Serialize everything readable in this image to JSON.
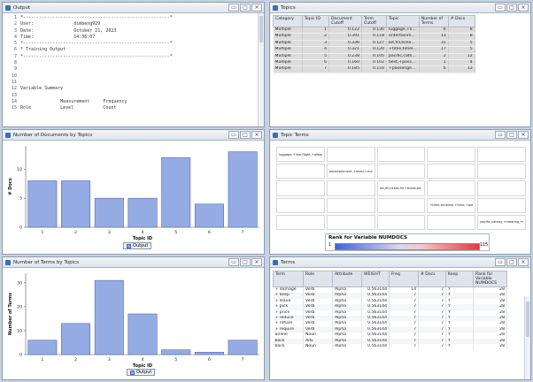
{
  "output": {
    "title": "Output",
    "lines": [
      {
        "n": "1",
        "text": "*-------------------------------------------------------*"
      },
      {
        "n": "2",
        "text": "User:               dimbeng929"
      },
      {
        "n": "3",
        "text": "Date:               October 21, 2023"
      },
      {
        "n": "4",
        "text": "Time:               14:36:07"
      },
      {
        "n": "5",
        "text": "*-------------------------------------------------------*"
      },
      {
        "n": "6",
        "text": "* Training Output"
      },
      {
        "n": "7",
        "text": "*-------------------------------------------------------*"
      },
      {
        "n": "8",
        "text": ""
      },
      {
        "n": "9",
        "text": ""
      },
      {
        "n": "10",
        "text": ""
      },
      {
        "n": "11",
        "text": ""
      },
      {
        "n": "12",
        "text": "Variable Summary"
      },
      {
        "n": "13",
        "text": ""
      },
      {
        "n": "14",
        "text": "               Measurement     Frequency"
      },
      {
        "n": "15",
        "text": "Role           Level           Count"
      }
    ]
  },
  "topics": {
    "title": "Topics",
    "columns": [
      "Category",
      "Topic ID",
      "Document Cutoff",
      "Term Cutoff",
      "Topic",
      "Number of Terms",
      "# Docs"
    ],
    "rows": [
      [
        "Multiple",
        "1",
        "0.122",
        "0.130",
        "luggage,+li...",
        "6",
        "8"
      ],
      [
        "Multiple",
        "2",
        "0.391",
        "0.118",
        "entertainm...",
        "13",
        "8"
      ],
      [
        "Multiple",
        "3",
        "0.336",
        "0.127",
        "bit,fill,ticke...",
        "31",
        "5"
      ],
      [
        "Multiple",
        "4",
        "0.321",
        "0.120",
        "+time,timel...",
        "17",
        "5"
      ],
      [
        "Multiple",
        "5",
        "0.238",
        "0.105",
        "pacific,cath...",
        "2",
        "12"
      ],
      [
        "Multiple",
        "6",
        "0.160",
        "0.102",
        "best,+poss...",
        "1",
        "4"
      ],
      [
        "Multiple",
        "7",
        "0.185",
        "0.110",
        "+passenge...",
        "6",
        "13"
      ]
    ]
  },
  "chart1": {
    "title": "Number of Documents by Topics",
    "legend": "Output",
    "chart_data": {
      "type": "bar",
      "categories": [
        "1",
        "2",
        "3",
        "4",
        "5",
        "6",
        "7"
      ],
      "values": [
        8,
        8,
        5,
        5,
        12,
        4,
        13
      ],
      "xlabel": "Topic ID",
      "ylabel": "# Docs",
      "ylim": [
        0,
        14
      ],
      "yticks": [
        0,
        5,
        10
      ],
      "grid": false
    }
  },
  "chart2": {
    "title": "Number of Terms by Topics",
    "legend": "Output",
    "chart_data": {
      "type": "bar",
      "categories": [
        "1",
        "2",
        "3",
        "4",
        "5",
        "6",
        "7"
      ],
      "values": [
        6,
        13,
        31,
        17,
        2,
        1,
        6
      ],
      "xlabel": "Topic ID",
      "ylabel": "Number of Terms",
      "ylim": [
        0,
        34
      ],
      "yticks": [
        0,
        10,
        20,
        30
      ],
      "grid": false
    }
  },
  "topicterms": {
    "title": "Topic Terms",
    "labels": [
      {
        "row": 0,
        "col": 0,
        "text": "luggage,+line,flight,+allow,flight"
      },
      {
        "row": 1,
        "col": 1,
        "text": "entertainment,+meal,+meal"
      },
      {
        "row": 2,
        "col": 2,
        "text": "bit,fill,ticket,fill,+ticket,bit,"
      },
      {
        "row": 3,
        "col": 3,
        "text": "+time,timeline,+time,+plan,value,+booking,hold,multiple"
      },
      {
        "row": 4,
        "col": 4,
        "text": "pacific,cathay,+meeting,+ro"
      }
    ],
    "rank_title": "Rank for Variable NUMDOCS",
    "rank_min": "1",
    "rank_max": "115"
  },
  "terms": {
    "title": "Terms",
    "columns": [
      "Term",
      "Role",
      "Attribute",
      "WEIGHT",
      "Freq",
      "# Docs",
      "Keep",
      "Rank for Variable NUMDOCS"
    ],
    "rows": [
      [
        "+ damage",
        "Verb",
        "Alpha",
        "0.563144",
        "14",
        "7",
        "Y",
        "28"
      ],
      [
        "+ keep",
        "Verb",
        "Alpha",
        "0.563144",
        "7",
        "7",
        "Y",
        "28"
      ],
      [
        "+ leave",
        "Verb",
        "Alpha",
        "0.563144",
        "7",
        "7",
        "Y",
        "28"
      ],
      [
        "+ pick",
        "Verb",
        "Alpha",
        "0.563144",
        "7",
        "7",
        "Y",
        "28"
      ],
      [
        "+ price",
        "Verb",
        "Alpha",
        "0.563144",
        "7",
        "7",
        "Y",
        "28"
      ],
      [
        "+ reduce",
        "Verb",
        "Alpha",
        "0.563144",
        "7",
        "7",
        "Y",
        "28"
      ],
      [
        "+ refuse",
        "Verb",
        "Alpha",
        "0.563144",
        "7",
        "7",
        "Y",
        "28"
      ],
      [
        "+ require",
        "Verb",
        "Alpha",
        "0.563144",
        "7",
        "7",
        "Y",
        "28"
      ],
      [
        "airline",
        "Noun",
        "Alpha",
        "0.563144",
        "7",
        "7",
        "Y",
        "28"
      ],
      [
        "back",
        "Adv",
        "Alpha",
        "0.563144",
        "7",
        "7",
        "Y",
        "28"
      ],
      [
        "back",
        "Noun",
        "Alpha",
        "0.563144",
        "7",
        "7",
        "Y",
        "28"
      ]
    ]
  },
  "window_buttons": {
    "minimize": "▭",
    "maximize": "□",
    "close": "×"
  }
}
